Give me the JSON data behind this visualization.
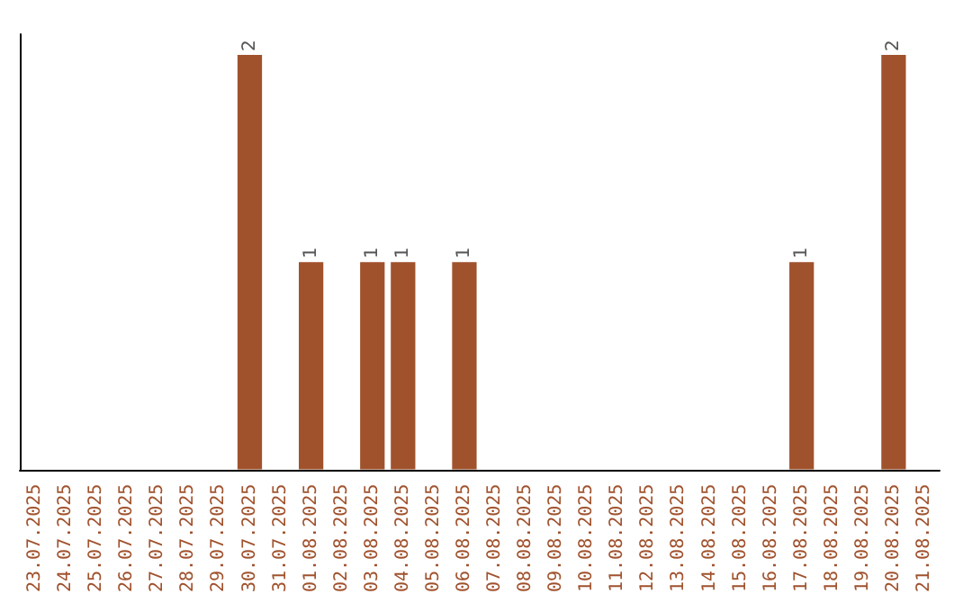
{
  "chart_data": {
    "type": "bar",
    "categories": [
      "23.07.2025",
      "24.07.2025",
      "25.07.2025",
      "26.07.2025",
      "27.07.2025",
      "28.07.2025",
      "29.07.2025",
      "30.07.2025",
      "31.07.2025",
      "01.08.2025",
      "02.08.2025",
      "03.08.2025",
      "04.08.2025",
      "05.08.2025",
      "06.08.2025",
      "07.08.2025",
      "08.08.2025",
      "09.08.2025",
      "10.08.2025",
      "11.08.2025",
      "12.08.2025",
      "13.08.2025",
      "14.08.2025",
      "15.08.2025",
      "16.08.2025",
      "17.08.2025",
      "18.08.2025",
      "19.08.2025",
      "20.08.2025",
      "21.08.2025"
    ],
    "values": [
      0,
      0,
      0,
      0,
      0,
      0,
      0,
      2,
      0,
      1,
      0,
      1,
      1,
      0,
      1,
      0,
      0,
      0,
      0,
      0,
      0,
      0,
      0,
      0,
      0,
      1,
      0,
      0,
      2,
      0
    ],
    "value_labels": [
      null,
      null,
      null,
      null,
      null,
      null,
      null,
      "2",
      null,
      "1",
      null,
      "1",
      "1",
      null,
      "1",
      null,
      null,
      null,
      null,
      null,
      null,
      null,
      null,
      null,
      null,
      "1",
      null,
      null,
      "2",
      null
    ],
    "color": "#a0522d",
    "tick_labels": "x",
    "grid": false
  }
}
